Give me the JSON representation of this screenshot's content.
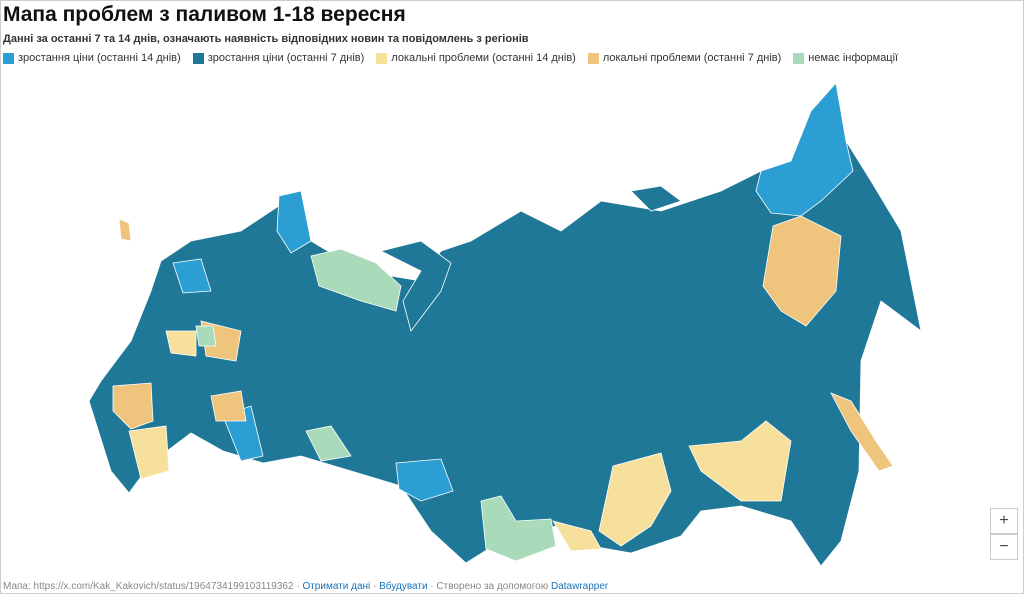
{
  "header": {
    "title": "Мапа проблем з паливом 1-18 вересня",
    "subtitle": "Данні за останні 7 та 14 днів, означають наявність відповідних новин та повідомлень з регіонів"
  },
  "legend": {
    "items": [
      {
        "label": "зростання ціни (останні 14 днів)",
        "color": "#2b9fd4"
      },
      {
        "label": "зростання ціни (останні 7 днів)",
        "color": "#1f7898"
      },
      {
        "label": "локальні проблеми (останні 14 днів)",
        "color": "#f6e09b"
      },
      {
        "label": "локальні проблеми (останні 7 днів)",
        "color": "#efc47d"
      },
      {
        "label": "немає інформації",
        "color": "#a9dab9"
      }
    ]
  },
  "footer": {
    "source": "Мапа: https://x.com/Kak_Kakovich/status/1964734199103119362",
    "get_data": "Отримати дані",
    "embed": "Вбудувати",
    "created": "Створено за допомогою",
    "tool": "Datawrapper"
  },
  "zoom": {
    "in": "+",
    "out": "−"
  }
}
